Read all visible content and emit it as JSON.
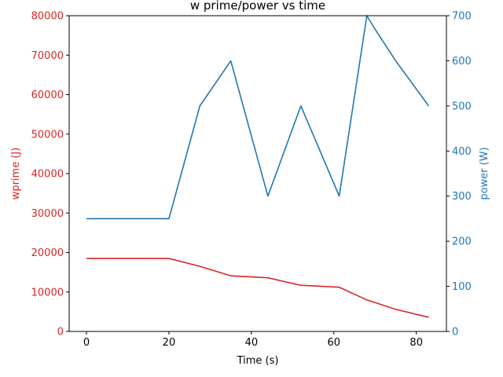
{
  "chart_data": {
    "type": "line",
    "title": "w prime/power vs time",
    "xlabel": "Time (s)",
    "xlim": [
      -4.2,
      87.3
    ],
    "x_ticks": [
      0,
      20,
      40,
      60,
      80
    ],
    "x_tick_labels": [
      "0",
      "20",
      "40",
      "60",
      "80"
    ],
    "y_axes": [
      {
        "side": "left",
        "label": "wprime (J)",
        "color": "#d62728",
        "ylim": [
          0,
          80000
        ],
        "ticks": [
          0,
          10000,
          20000,
          30000,
          40000,
          50000,
          60000,
          70000,
          80000
        ],
        "tick_labels": [
          "0",
          "10000",
          "20000",
          "30000",
          "40000",
          "50000",
          "60000",
          "70000",
          "80000"
        ]
      },
      {
        "side": "right",
        "label": "power (W)",
        "color": "#1f77b4",
        "ylim": [
          0,
          700
        ],
        "ticks": [
          0,
          100,
          200,
          300,
          400,
          500,
          600,
          700
        ],
        "tick_labels": [
          "0",
          "100",
          "200",
          "300",
          "400",
          "500",
          "600",
          "700"
        ]
      }
    ],
    "series": [
      {
        "axis": "left",
        "color": "#d62728",
        "x": [
          0,
          20,
          27.5,
          35,
          44,
          52,
          61.3,
          68,
          75,
          83
        ],
        "values": [
          18500,
          18500,
          16500,
          14100,
          13600,
          11700,
          11200,
          8000,
          5600,
          3600
        ]
      },
      {
        "axis": "right",
        "color": "#1f77b4",
        "x": [
          0,
          20,
          27.5,
          35,
          44,
          52,
          61.3,
          68,
          70,
          75,
          83
        ],
        "values": [
          250,
          250,
          500,
          600,
          300,
          500,
          300,
          700,
          670,
          600,
          500
        ]
      }
    ],
    "grid": false,
    "legend": "none"
  }
}
